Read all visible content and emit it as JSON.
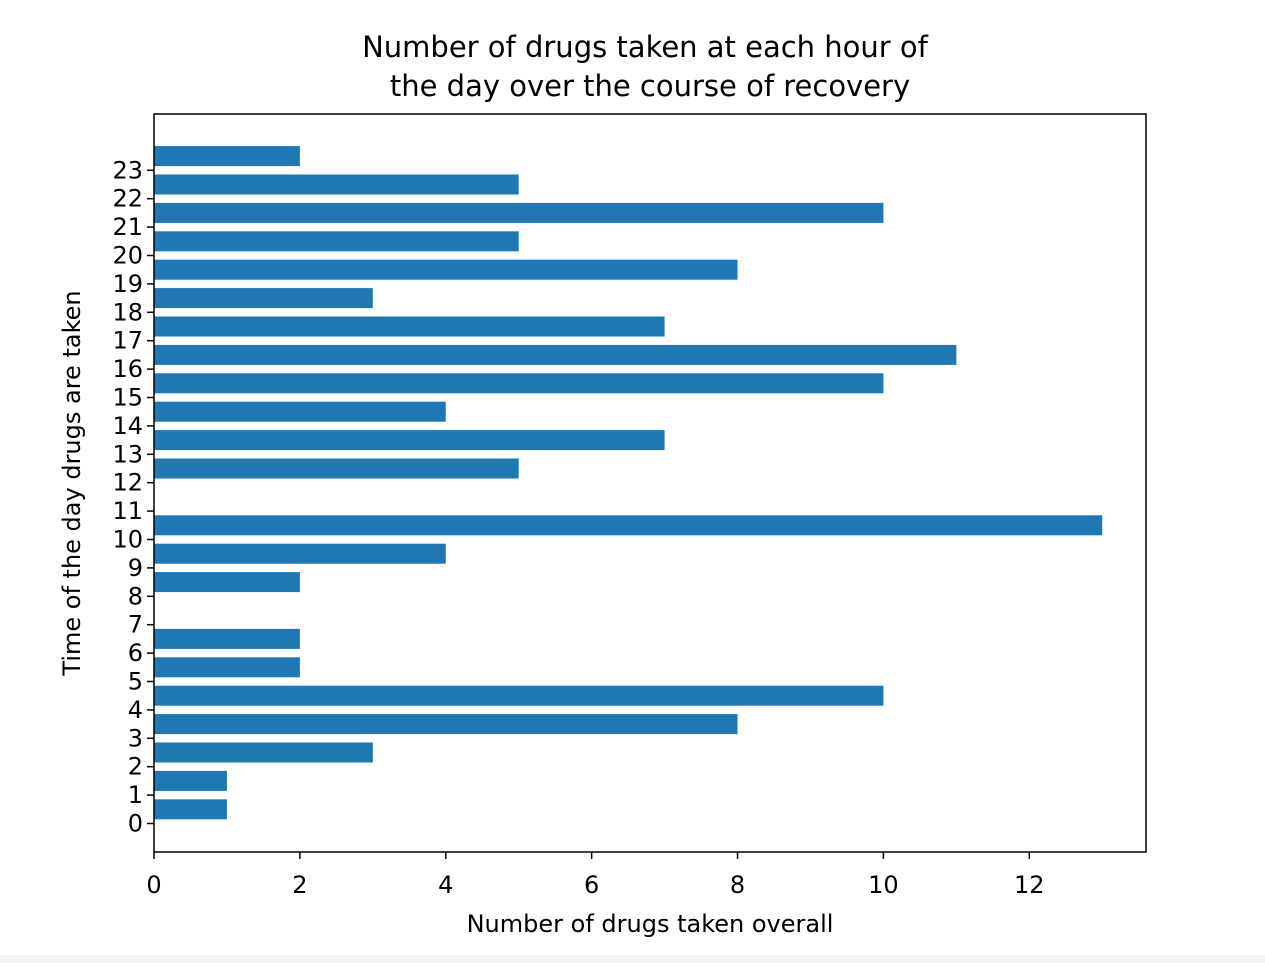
{
  "chart_data": {
    "type": "bar",
    "orientation": "horizontal",
    "title_lines": [
      "Number of drugs taken at each hour of",
      "the day over the course of recovery"
    ],
    "xlabel": "Number of drugs taken overall",
    "ylabel": "Time of the day drugs are taken",
    "categories": [
      "0",
      "1",
      "2",
      "3",
      "4",
      "5",
      "6",
      "7",
      "8",
      "9",
      "10",
      "11",
      "12",
      "13",
      "14",
      "15",
      "16",
      "17",
      "18",
      "19",
      "20",
      "21",
      "22",
      "23"
    ],
    "values": [
      1,
      1,
      3,
      8,
      10,
      2,
      2,
      0,
      2,
      4,
      13,
      0,
      5,
      7,
      4,
      10,
      11,
      7,
      3,
      8,
      5,
      10,
      5,
      2
    ],
    "xticks": [
      0,
      2,
      4,
      6,
      8,
      10,
      12
    ],
    "xlim": [
      0,
      13.6
    ],
    "bar_color": "#1f77b4",
    "grid": false,
    "legend": "none"
  }
}
